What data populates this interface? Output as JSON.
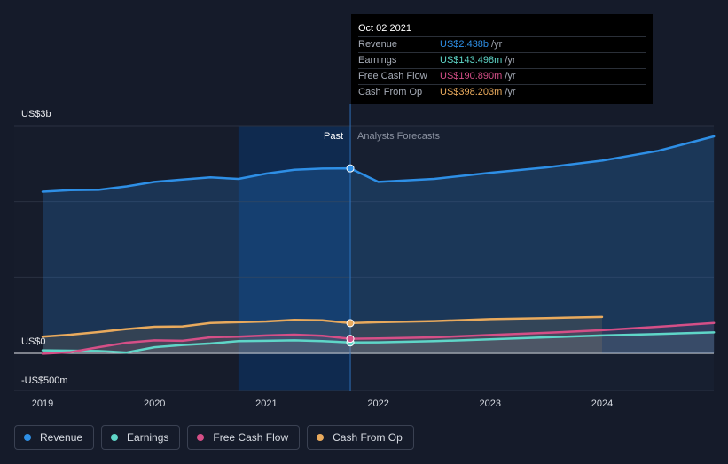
{
  "chart_data": {
    "type": "area",
    "y_tick_labels": [
      "US$3b",
      "US$0",
      "-US$500m"
    ],
    "x_tick_labels": [
      "2019",
      "2020",
      "2021",
      "2022",
      "2023",
      "2024"
    ],
    "ylim": [
      -500,
      3000
    ],
    "y_unit": "US$ m",
    "region_labels": {
      "past": "Past",
      "forecast": "Analysts Forecasts"
    },
    "past_end": 2021.75,
    "x_ticks": [
      2019,
      2020,
      2021,
      2022,
      2023,
      2024
    ],
    "y_ticks": [
      3000,
      0,
      -500
    ],
    "series": [
      {
        "name": "Revenue",
        "color": "#2e8fe6",
        "x": [
          2019.0,
          2019.25,
          2019.5,
          2019.75,
          2020.0,
          2020.25,
          2020.5,
          2020.75,
          2021.0,
          2021.25,
          2021.5,
          2021.75,
          2022.0,
          2022.5,
          2023.0,
          2023.5,
          2024.0,
          2024.5,
          2025.0
        ],
        "values": [
          2130,
          2150,
          2155,
          2200,
          2260,
          2290,
          2320,
          2300,
          2370,
          2420,
          2435,
          2438,
          2260,
          2300,
          2380,
          2450,
          2540,
          2670,
          2860
        ]
      },
      {
        "name": "Earnings",
        "color": "#5fd6c8",
        "x": [
          2019.0,
          2019.5,
          2019.75,
          2020.0,
          2020.25,
          2020.5,
          2020.75,
          2021.0,
          2021.25,
          2021.5,
          2021.75,
          2022.0,
          2022.5,
          2023.0,
          2023.5,
          2024.0,
          2024.5,
          2025.0
        ],
        "values": [
          40,
          30,
          10,
          80,
          110,
          130,
          160,
          165,
          170,
          160,
          143,
          145,
          160,
          185,
          210,
          235,
          255,
          275
        ]
      },
      {
        "name": "Free Cash Flow",
        "color": "#d54f87",
        "x": [
          2019.0,
          2019.25,
          2019.5,
          2019.75,
          2020.0,
          2020.25,
          2020.5,
          2020.75,
          2021.0,
          2021.25,
          2021.5,
          2021.75,
          2022.0,
          2022.5,
          2023.0,
          2023.5,
          2024.0,
          2024.5,
          2025.0
        ],
        "values": [
          -5,
          15,
          80,
          140,
          170,
          165,
          210,
          220,
          235,
          245,
          230,
          191,
          195,
          210,
          240,
          270,
          305,
          350,
          400
        ]
      },
      {
        "name": "Cash From Op",
        "color": "#e9aa5d",
        "x": [
          2019.0,
          2019.25,
          2019.5,
          2019.75,
          2020.0,
          2020.25,
          2020.5,
          2020.75,
          2021.0,
          2021.25,
          2021.5,
          2021.75,
          2022.0,
          2022.5,
          2023.0,
          2023.5,
          2024.0
        ],
        "values": [
          220,
          245,
          280,
          320,
          350,
          355,
          400,
          410,
          420,
          440,
          435,
          398,
          410,
          425,
          450,
          465,
          480
        ]
      }
    ]
  },
  "tooltip": {
    "date": "Oct 02 2021",
    "rows": [
      {
        "label": "Revenue",
        "value": "US$2.438b",
        "unit": "/yr",
        "color": "#2e8fe6"
      },
      {
        "label": "Earnings",
        "value": "US$143.498m",
        "unit": "/yr",
        "color": "#5fd6c8"
      },
      {
        "label": "Free Cash Flow",
        "value": "US$190.890m",
        "unit": "/yr",
        "color": "#d54f87"
      },
      {
        "label": "Cash From Op",
        "value": "US$398.203m",
        "unit": "/yr",
        "color": "#e9aa5d"
      }
    ]
  },
  "legend": [
    {
      "label": "Revenue",
      "color": "#2e8fe6"
    },
    {
      "label": "Earnings",
      "color": "#5fd6c8"
    },
    {
      "label": "Free Cash Flow",
      "color": "#d54f87"
    },
    {
      "label": "Cash From Op",
      "color": "#e9aa5d"
    }
  ]
}
